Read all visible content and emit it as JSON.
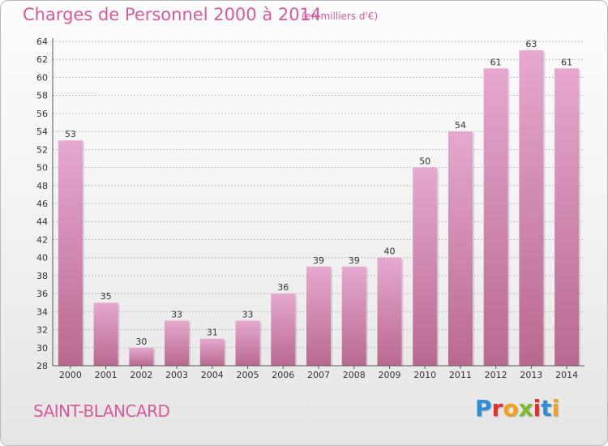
{
  "header": {
    "title": "Charges de Personnel 2000 à 2014",
    "subtitle": "(en milliers d'€)"
  },
  "footer": {
    "commune": "SAINT-BLANCARD",
    "logo_letters": [
      "P",
      "r",
      "o",
      "x",
      "i",
      "t",
      "i"
    ],
    "logo_colors": [
      "#2d8fd6",
      "#e0312f",
      "#f2a11b",
      "#7dbb2d",
      "#e0312f",
      "#2d8fd6",
      "#f2a11b"
    ]
  },
  "colors": {
    "bar_light": "#e6a8cf",
    "bar_dark": "#b9698f",
    "accent": "#d65a9c",
    "grid": "#bdbdbd"
  },
  "chart_data": {
    "type": "bar",
    "title": "Charges de Personnel 2000 à 2014",
    "subtitle": "(en milliers d'€)",
    "xlabel": "",
    "ylabel": "",
    "categories": [
      "2000",
      "2001",
      "2002",
      "2003",
      "2004",
      "2005",
      "2006",
      "2007",
      "2008",
      "2009",
      "2010",
      "2011",
      "2012",
      "2013",
      "2014"
    ],
    "values": [
      53,
      35,
      30,
      33,
      31,
      33,
      36,
      39,
      39,
      40,
      50,
      54,
      61,
      63,
      61
    ],
    "ylim": [
      28,
      64
    ],
    "yticks": [
      28,
      30,
      32,
      34,
      36,
      38,
      40,
      42,
      44,
      46,
      48,
      50,
      52,
      54,
      56,
      58,
      60,
      62,
      64
    ],
    "grid": true,
    "legend": "none"
  }
}
